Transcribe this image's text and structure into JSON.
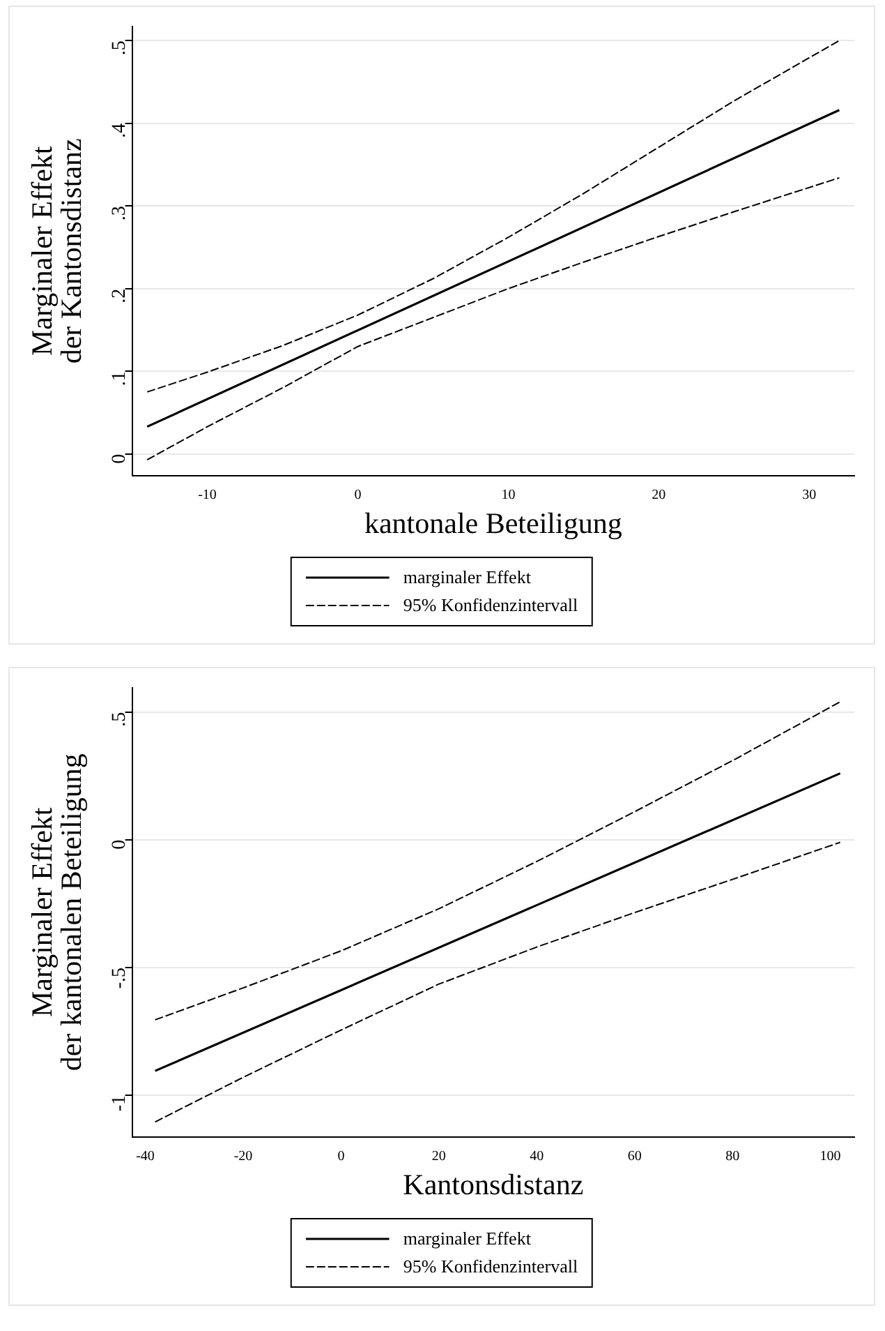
{
  "chart_data": [
    {
      "type": "line",
      "xlabel": "kantonale Beteiligung",
      "ylabel": "Marginaler Effekt\nder Kantonsdistanz",
      "xlim": [
        -15,
        33
      ],
      "xticks": [
        -10,
        0,
        10,
        20,
        30
      ],
      "ylim": [
        -0.026,
        0.517
      ],
      "yticks": [
        {
          "value": 0,
          "label": "0"
        },
        {
          "value": 0.1,
          "label": ".1"
        },
        {
          "value": 0.2,
          "label": ".2"
        },
        {
          "value": 0.3,
          "label": ".3"
        },
        {
          "value": 0.4,
          "label": ".4"
        },
        {
          "value": 0.5,
          "label": ".5"
        }
      ],
      "grid": "y",
      "legend": "bottom",
      "marker": "none",
      "series": [
        {
          "name": "marginaler Effekt",
          "color": "#000000",
          "line_style": "solid",
          "x": [
            -14,
            32
          ],
          "values": [
            0.033,
            0.416
          ]
        },
        {
          "name": "95% Konfidenzintervall",
          "color": "#000000",
          "line_style": "dashed",
          "x": [
            -14,
            -10,
            -5,
            0,
            5,
            10,
            15,
            20,
            25,
            32
          ],
          "values": [
            0.075,
            0.099,
            0.131,
            0.168,
            0.212,
            0.262,
            0.315,
            0.371,
            0.427,
            0.5
          ]
        },
        {
          "color": "#000000",
          "line_style": "dashed",
          "x": [
            -14,
            -10,
            -5,
            0,
            5,
            10,
            15,
            20,
            25,
            32
          ],
          "values": [
            -0.007,
            0.033,
            0.08,
            0.13,
            0.165,
            0.2,
            0.232,
            0.263,
            0.293,
            0.334
          ]
        }
      ]
    },
    {
      "type": "line",
      "xlabel": "Kantonsdistanz",
      "ylabel": "Marginaler Effekt\nder kantonalen Beteiligung",
      "xlim": [
        -42.7,
        104.9
      ],
      "xticks": [
        -40,
        -20,
        0,
        20,
        40,
        60,
        80,
        100
      ],
      "ylim": [
        -1.163,
        0.595
      ],
      "yticks": [
        {
          "value": -1,
          "label": "-1"
        },
        {
          "value": -0.5,
          "label": "-.5"
        },
        {
          "value": 0,
          "label": "0"
        },
        {
          "value": 0.5,
          "label": ".5"
        }
      ],
      "grid": "y",
      "legend": "bottom",
      "marker": "none",
      "series": [
        {
          "name": "marginaler Effekt",
          "color": "#000000",
          "line_style": "solid",
          "x": [
            -38,
            102
          ],
          "values": [
            -0.905,
            0.26
          ]
        },
        {
          "name": "95% Konfidenzintervall",
          "color": "#000000",
          "line_style": "dashed",
          "x": [
            -38,
            -20,
            0,
            20,
            40,
            60,
            80,
            102
          ],
          "values": [
            -0.705,
            -0.58,
            -0.435,
            -0.27,
            -0.085,
            0.11,
            0.31,
            0.54
          ]
        },
        {
          "color": "#000000",
          "line_style": "dashed",
          "x": [
            -38,
            -20,
            0,
            20,
            40,
            60,
            80,
            102
          ],
          "values": [
            -1.105,
            -0.93,
            -0.745,
            -0.565,
            -0.42,
            -0.285,
            -0.155,
            -0.01
          ]
        }
      ]
    }
  ]
}
